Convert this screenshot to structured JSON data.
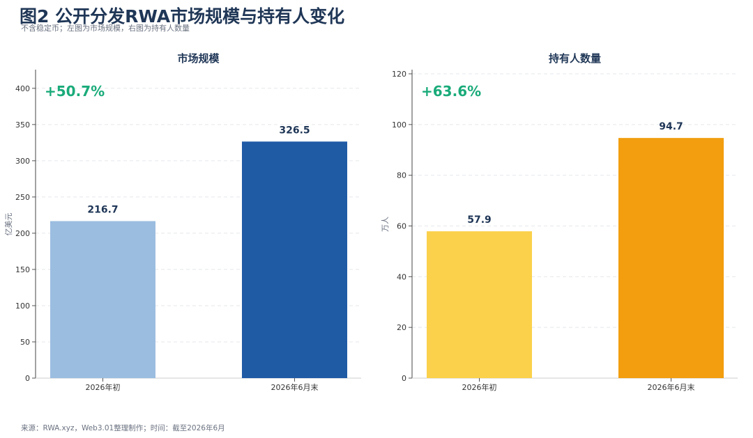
{
  "header": {
    "title": "图2 公开分发RWA市场规模与持有人变化",
    "subtitle": "不含稳定币；左图为市场规模，右图为持有人数量"
  },
  "footer": {
    "source": "来源：RWA.xyz，Web3.01整理制作；时间：截至2026年6月"
  },
  "colors": {
    "title": "#1f3656",
    "change": "#1aab7a",
    "left_bar_1": "#9bbde0",
    "left_bar_2": "#1f5aa5",
    "right_bar_1": "#fbd14b",
    "right_bar_2": "#f29e0f"
  },
  "chart_data": [
    {
      "type": "bar",
      "title": "市场规模",
      "ylabel": "亿美元",
      "xlabel": "",
      "categories": [
        "2026年初",
        "2026年6月末"
      ],
      "values": [
        216.7,
        326.5
      ],
      "value_labels": [
        "216.7",
        "326.5"
      ],
      "ylim": [
        0,
        420
      ],
      "yticks": [
        0,
        50,
        100,
        150,
        200,
        250,
        300,
        350,
        400
      ],
      "change_label": "+50.7%",
      "grid": true
    },
    {
      "type": "bar",
      "title": "持有人数量",
      "ylabel": "万人",
      "xlabel": "",
      "categories": [
        "2026年初",
        "2026年6月末"
      ],
      "values": [
        57.9,
        94.7
      ],
      "value_labels": [
        "57.9",
        "94.7"
      ],
      "ylim": [
        0,
        120
      ],
      "yticks": [
        0,
        20,
        40,
        60,
        80,
        100,
        120
      ],
      "change_label": "+63.6%",
      "grid": true
    }
  ]
}
